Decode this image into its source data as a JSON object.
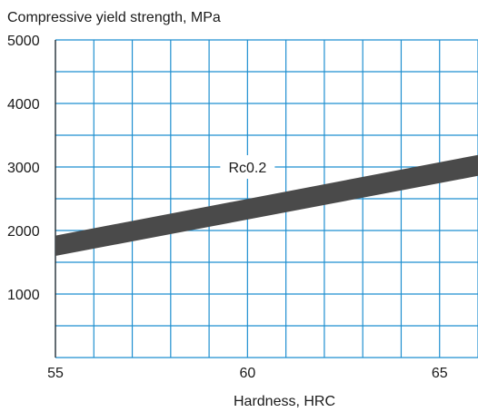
{
  "chart_data": {
    "type": "area",
    "title": "",
    "ylabel": "Compressive yield strength, MPa",
    "xlabel": "Hardness, HRC",
    "xlim": [
      55,
      66
    ],
    "ylim": [
      0,
      5000
    ],
    "x_ticks": [
      55,
      60,
      65
    ],
    "x_tick_labels": [
      "55",
      "60",
      "65"
    ],
    "x_grid_step": 1,
    "y_ticks": [
      1000,
      2000,
      3000,
      4000,
      5000
    ],
    "y_tick_labels": [
      "1000",
      "2000",
      "3000",
      "4000",
      "5000"
    ],
    "y_grid_step": 500,
    "grid": true,
    "grid_color": "#1f8fd0",
    "band_color": "#4a4a4a",
    "series": [
      {
        "name": "Rc0.2",
        "x": [
          55,
          66
        ],
        "upper": [
          1920,
          3190
        ],
        "lower": [
          1600,
          2860
        ]
      }
    ],
    "annotations": [
      {
        "text": "Rc0.2",
        "x": 60,
        "y": 3000
      }
    ]
  }
}
